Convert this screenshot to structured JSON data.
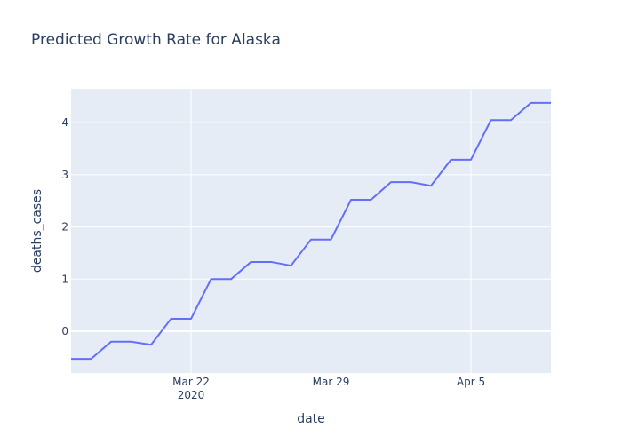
{
  "chart_data": {
    "type": "line",
    "title": "Predicted Growth Rate for Alaska",
    "xlabel": "date",
    "ylabel": "deaths_cases",
    "x_tick_labels": [
      "Mar 22",
      "Mar 29",
      "Apr 5"
    ],
    "x_tick_sublabel": "2020",
    "y_ticks": [
      0,
      1,
      2,
      3,
      4
    ],
    "xlim": [
      "2020-03-16",
      "2020-04-09"
    ],
    "ylim": [
      -0.8,
      4.65
    ],
    "grid": true,
    "colors": {
      "line": "#636efa",
      "plot_bg": "#e5ecf6",
      "grid": "#ffffff",
      "text": "#2a3f5f"
    },
    "series": [
      {
        "x": [
          "2020-03-16",
          "2020-03-17",
          "2020-03-18",
          "2020-03-19",
          "2020-03-20",
          "2020-03-21",
          "2020-03-22",
          "2020-03-23",
          "2020-03-24",
          "2020-03-25",
          "2020-03-26",
          "2020-03-27",
          "2020-03-28",
          "2020-03-29",
          "2020-03-30",
          "2020-03-31",
          "2020-04-01",
          "2020-04-02",
          "2020-04-03",
          "2020-04-04",
          "2020-04-05",
          "2020-04-06",
          "2020-04-07",
          "2020-04-08",
          "2020-04-09"
        ],
        "y": [
          -0.53,
          -0.53,
          -0.2,
          -0.2,
          -0.26,
          0.24,
          0.24,
          1.0,
          1.0,
          1.33,
          1.33,
          1.26,
          1.76,
          1.76,
          2.52,
          2.52,
          2.86,
          2.86,
          2.79,
          3.29,
          3.29,
          4.05,
          4.05,
          4.38,
          4.38
        ]
      }
    ]
  }
}
